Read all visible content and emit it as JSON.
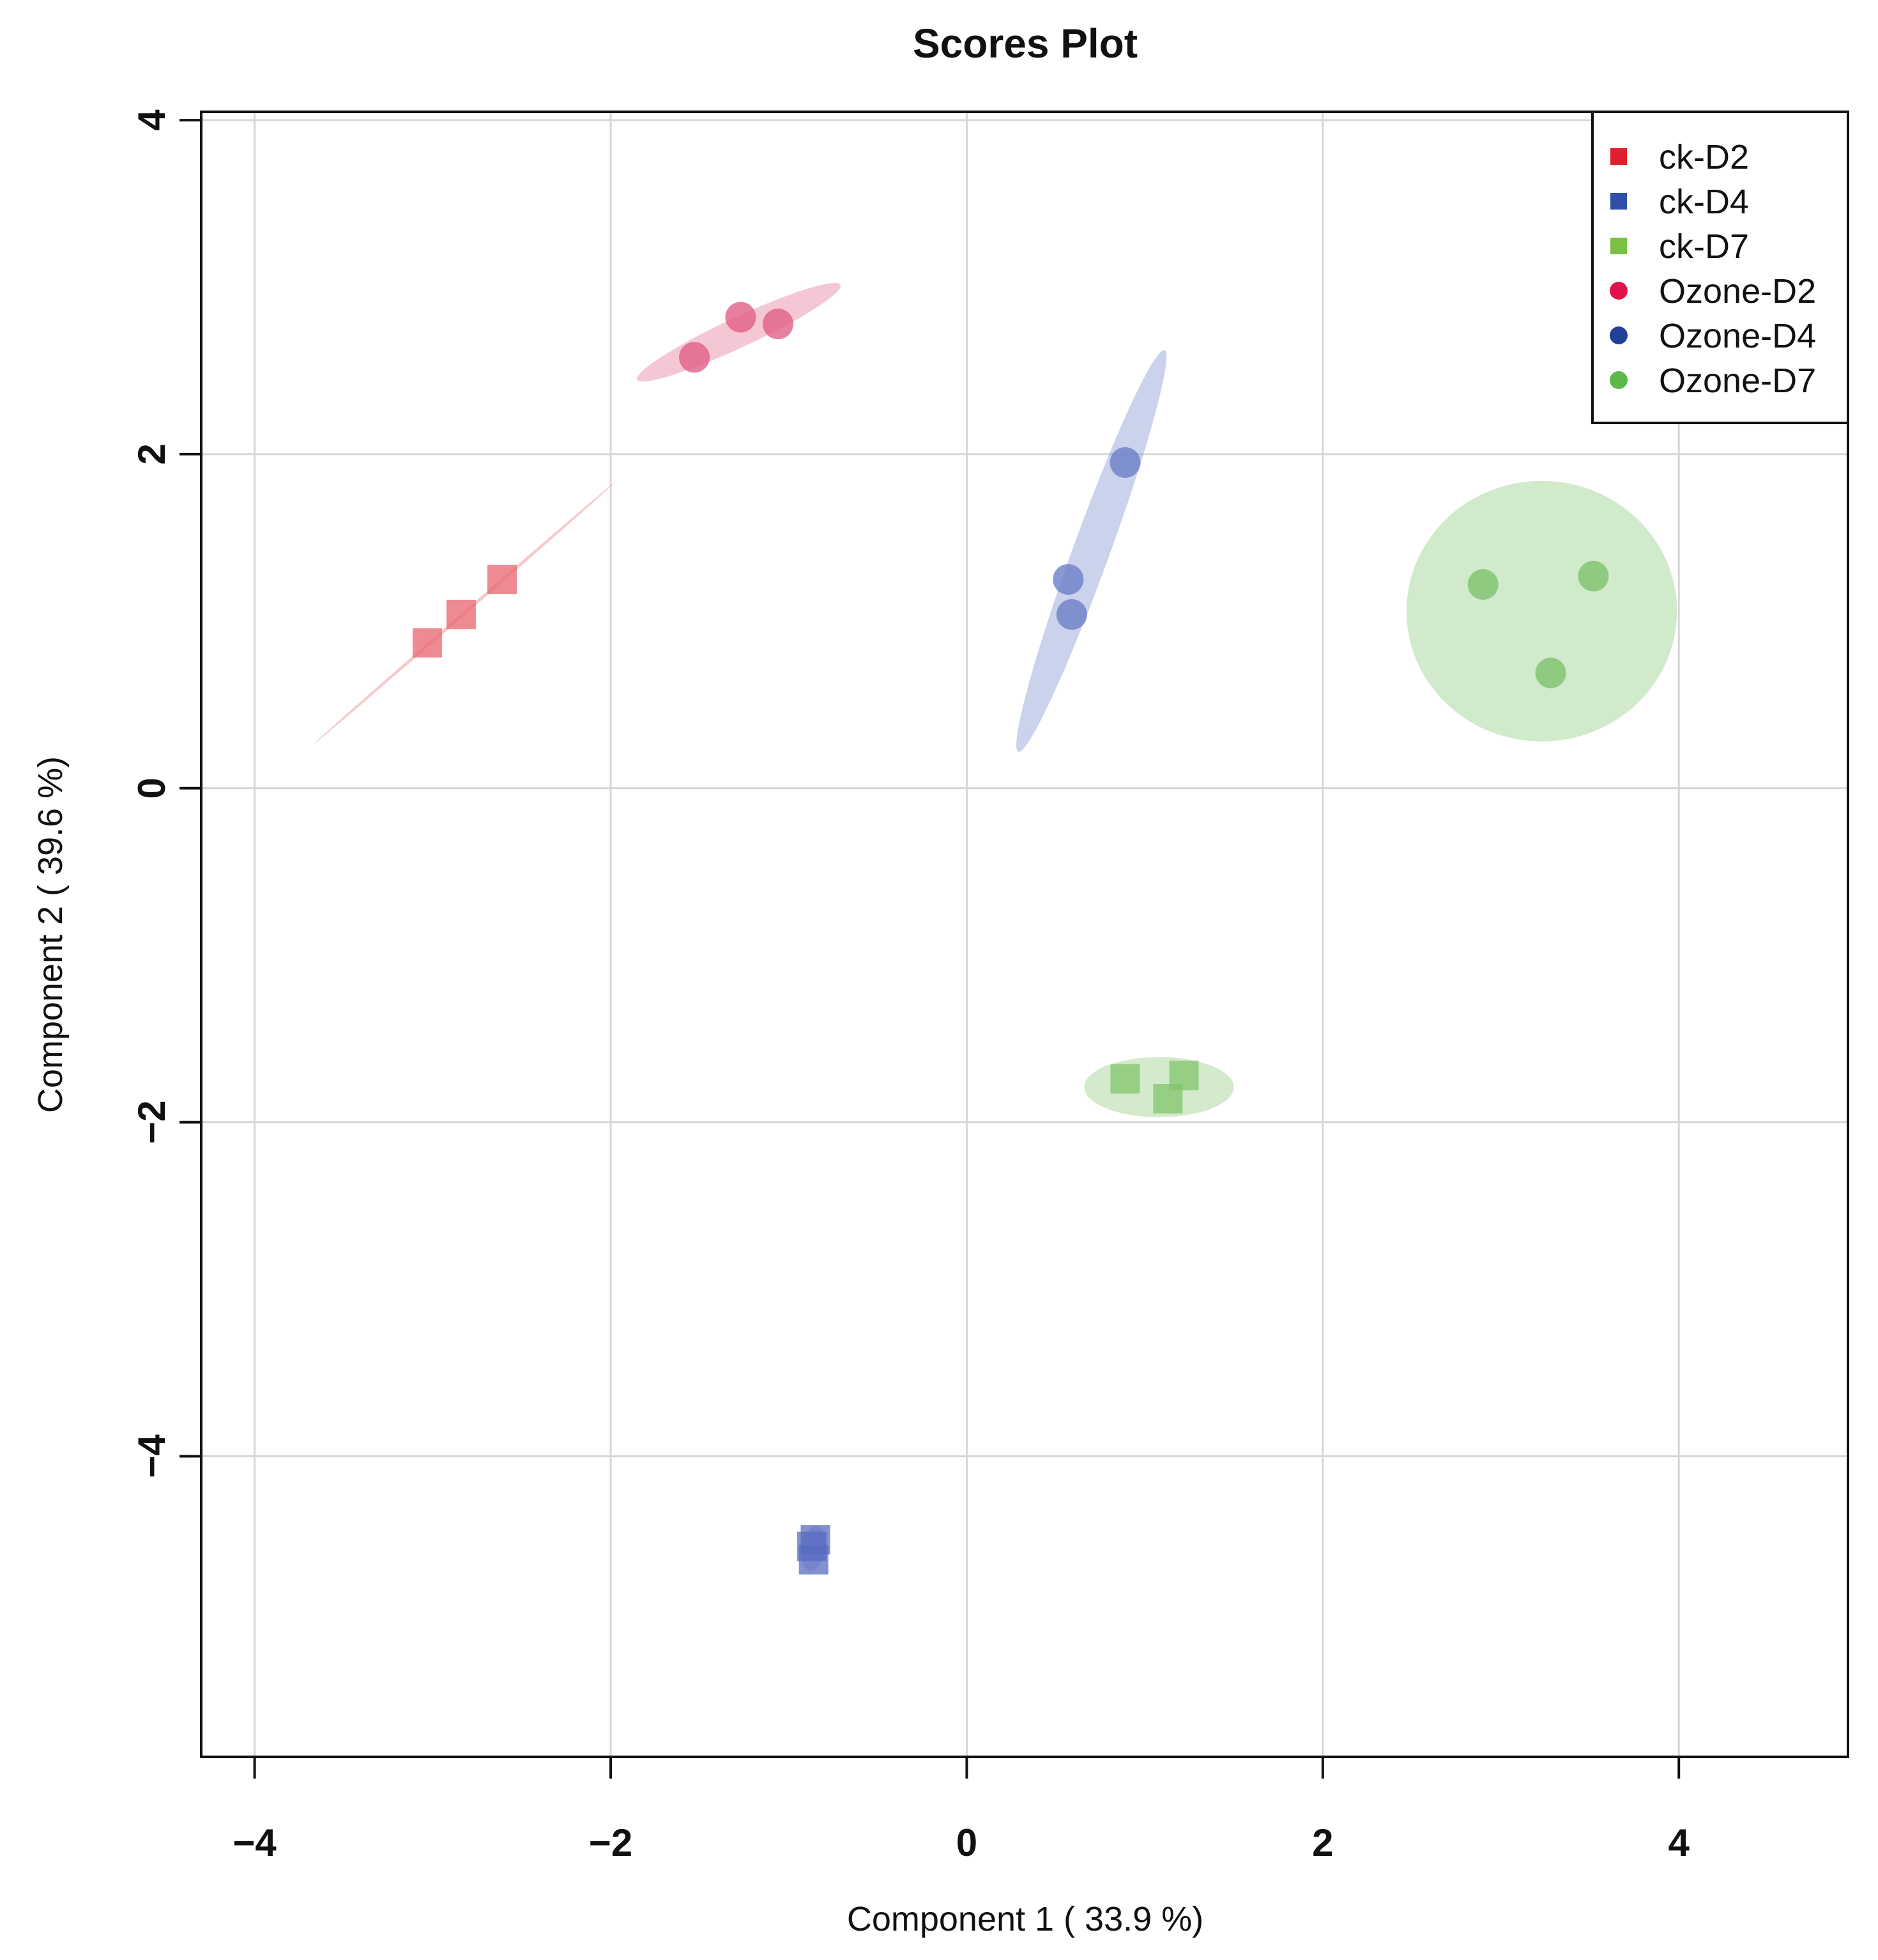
{
  "chart_data": {
    "type": "scatter",
    "title": "Scores Plot",
    "xlabel": "Component 1 ( 33.9 %)",
    "ylabel": "Component 2 ( 39.6 %)",
    "xlim": [
      -4.3,
      4.95
    ],
    "ylim": [
      -5.8,
      4.05
    ],
    "xticks": [
      -4,
      -2,
      0,
      2,
      4
    ],
    "yticks": [
      -4,
      -2,
      0,
      2,
      4
    ],
    "xtick_labels": [
      "−4",
      "−2",
      "0",
      "2",
      "4"
    ],
    "ytick_labels": [
      "−4",
      "−2",
      "0",
      "2",
      "4"
    ],
    "grid": true,
    "legend_position": "top-right",
    "series": [
      {
        "name": "ck-D2",
        "marker": "square",
        "color": "#e8646e",
        "points": [
          [
            -3.03,
            0.87
          ],
          [
            -2.84,
            1.04
          ],
          [
            -2.61,
            1.25
          ]
        ],
        "ellipse": {
          "cx": -2.82,
          "cy": 1.05,
          "rx": 1.12,
          "ry": 0.01,
          "angle_deg": 41
        }
      },
      {
        "name": "ck-D4",
        "marker": "square",
        "color": "#5a6cc0",
        "points": [
          [
            -0.87,
            -4.54
          ],
          [
            -0.86,
            -4.62
          ],
          [
            -0.85,
            -4.5
          ]
        ],
        "ellipse": {
          "cx": -0.86,
          "cy": -4.55,
          "rx": 0.13,
          "ry": 0.07,
          "angle_deg": 80
        }
      },
      {
        "name": "ck-D7",
        "marker": "square",
        "color": "#82c46c",
        "points": [
          [
            0.89,
            -1.74
          ],
          [
            1.22,
            -1.72
          ],
          [
            1.13,
            -1.86
          ]
        ],
        "ellipse": {
          "cx": 1.08,
          "cy": -1.79,
          "rx": 0.42,
          "ry": 0.18,
          "angle_deg": 0
        }
      },
      {
        "name": "Ozone-D2",
        "marker": "circle",
        "color": "#e15f86",
        "points": [
          [
            -1.53,
            2.58
          ],
          [
            -1.27,
            2.82
          ],
          [
            -1.06,
            2.78
          ]
        ],
        "ellipse": {
          "cx": -1.28,
          "cy": 2.73,
          "rx": 0.63,
          "ry": 0.09,
          "angle_deg": 25
        }
      },
      {
        "name": "Ozone-D4",
        "marker": "circle",
        "color": "#6b7fc8",
        "points": [
          [
            0.89,
            1.95
          ],
          [
            0.57,
            1.25
          ],
          [
            0.59,
            1.04
          ]
        ],
        "ellipse": {
          "cx": 0.7,
          "cy": 1.42,
          "rx": 1.2,
          "ry": 0.11,
          "angle_deg": 70
        }
      },
      {
        "name": "Ozone-D7",
        "marker": "circle",
        "color": "#7dc36d",
        "points": [
          [
            2.9,
            1.22
          ],
          [
            3.52,
            1.27
          ],
          [
            3.28,
            0.69
          ]
        ],
        "ellipse": {
          "cx": 3.23,
          "cy": 1.06,
          "rx": 0.76,
          "ry": 0.78,
          "angle_deg": 0
        }
      }
    ],
    "legend": [
      {
        "label": "ck-D2",
        "marker": "square",
        "color": "#e0202e"
      },
      {
        "label": "ck-D4",
        "marker": "square",
        "color": "#2f4fa8"
      },
      {
        "label": "ck-D7",
        "marker": "square",
        "color": "#7ac043"
      },
      {
        "label": "Ozone-D2",
        "marker": "circle",
        "color": "#e0134a"
      },
      {
        "label": "Ozone-D4",
        "marker": "circle",
        "color": "#22409a"
      },
      {
        "label": "Ozone-D7",
        "marker": "circle",
        "color": "#5cb848"
      }
    ]
  }
}
